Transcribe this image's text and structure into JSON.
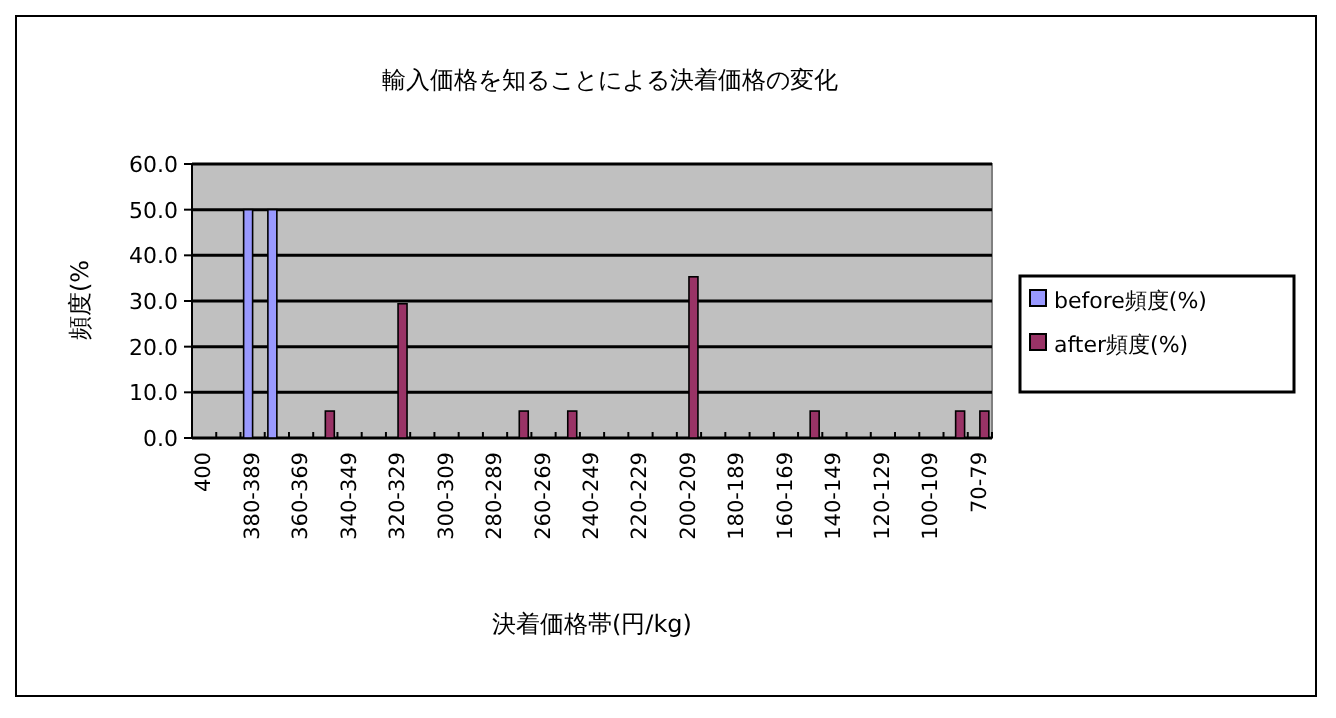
{
  "chart_data": {
    "type": "bar",
    "title": "輸入価格を知ることによる決着価格の変化",
    "xlabel": "決着価格帯(円/kg)",
    "ylabel": "頻度(%",
    "categories": [
      "400",
      null,
      "380-389",
      null,
      "360-369",
      null,
      "340-349",
      null,
      "320-329",
      null,
      "300-309",
      null,
      "280-289",
      null,
      "260-269",
      null,
      "240-249",
      null,
      "220-229",
      null,
      "200-209",
      null,
      "180-189",
      null,
      "160-169",
      null,
      "140-149",
      null,
      "120-129",
      null,
      "100-109",
      null,
      "70-79"
    ],
    "series": [
      {
        "name": "before頻度(%)",
        "color": "#9999ff",
        "values": [
          0,
          0,
          50,
          50,
          0,
          0,
          0,
          0,
          0,
          0,
          0,
          0,
          0,
          0,
          0,
          0,
          0,
          0,
          0,
          0,
          0,
          0,
          0,
          0,
          0,
          0,
          0,
          0,
          0,
          0,
          0,
          0,
          0
        ]
      },
      {
        "name": "after頻度(%)",
        "color": "#993366",
        "values": [
          0,
          0,
          0,
          0,
          0,
          5.9,
          0,
          0,
          29.4,
          0,
          0,
          0,
          0,
          5.9,
          0,
          5.9,
          0,
          0,
          0,
          0,
          35.3,
          0,
          0,
          0,
          0,
          5.9,
          0,
          0,
          0,
          0,
          0,
          5.9,
          5.9
        ]
      }
    ],
    "ylim": [
      0,
      60
    ],
    "yticks": [
      {
        "value": 0,
        "label": "0.0"
      },
      {
        "value": 10,
        "label": "10.0"
      },
      {
        "value": 20,
        "label": "20.0"
      },
      {
        "value": 30,
        "label": "30.0"
      },
      {
        "value": 40,
        "label": "40.0"
      },
      {
        "value": 50,
        "label": "50.0"
      },
      {
        "value": 60,
        "label": "60.0"
      }
    ],
    "grid": "y",
    "legend": "right"
  }
}
